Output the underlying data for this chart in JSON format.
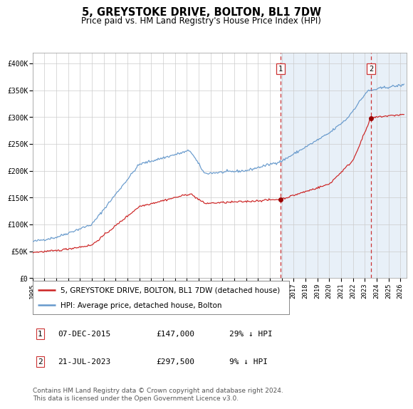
{
  "title": "5, GREYSTOKE DRIVE, BOLTON, BL1 7DW",
  "subtitle": "Price paid vs. HM Land Registry's House Price Index (HPI)",
  "ylim": [
    0,
    420000
  ],
  "xlim_start": 1995.0,
  "xlim_end": 2026.5,
  "yticks": [
    0,
    50000,
    100000,
    150000,
    200000,
    250000,
    300000,
    350000,
    400000
  ],
  "ytick_labels": [
    "£0",
    "£50K",
    "£100K",
    "£150K",
    "£200K",
    "£250K",
    "£300K",
    "£350K",
    "£400K"
  ],
  "hpi_color": "#6699cc",
  "price_color": "#cc2222",
  "marker_color": "#990000",
  "vline_color": "#cc3333",
  "shade_color": "#ddeeff",
  "hatch_color": "#c8d8e8",
  "grid_color": "#cccccc",
  "bg_color": "#ffffff",
  "transaction1": {
    "date_num": 2015.92,
    "price": 147000,
    "label": "1"
  },
  "transaction2": {
    "date_num": 2023.55,
    "price": 297500,
    "label": "2"
  },
  "legend_entries": [
    {
      "color": "#cc2222",
      "label": "5, GREYSTOKE DRIVE, BOLTON, BL1 7DW (detached house)"
    },
    {
      "color": "#6699cc",
      "label": "HPI: Average price, detached house, Bolton"
    }
  ],
  "table_rows": [
    {
      "num": "1",
      "date": "07-DEC-2015",
      "price": "£147,000",
      "hpi": "29% ↓ HPI"
    },
    {
      "num": "2",
      "date": "21-JUL-2023",
      "price": "£297,500",
      "hpi": "9% ↓ HPI"
    }
  ],
  "footnote": "Contains HM Land Registry data © Crown copyright and database right 2024.\nThis data is licensed under the Open Government Licence v3.0.",
  "title_fontsize": 10.5,
  "subtitle_fontsize": 8.5,
  "tick_fontsize": 7,
  "legend_fontsize": 7.5,
  "table_fontsize": 8,
  "footnote_fontsize": 6.5
}
